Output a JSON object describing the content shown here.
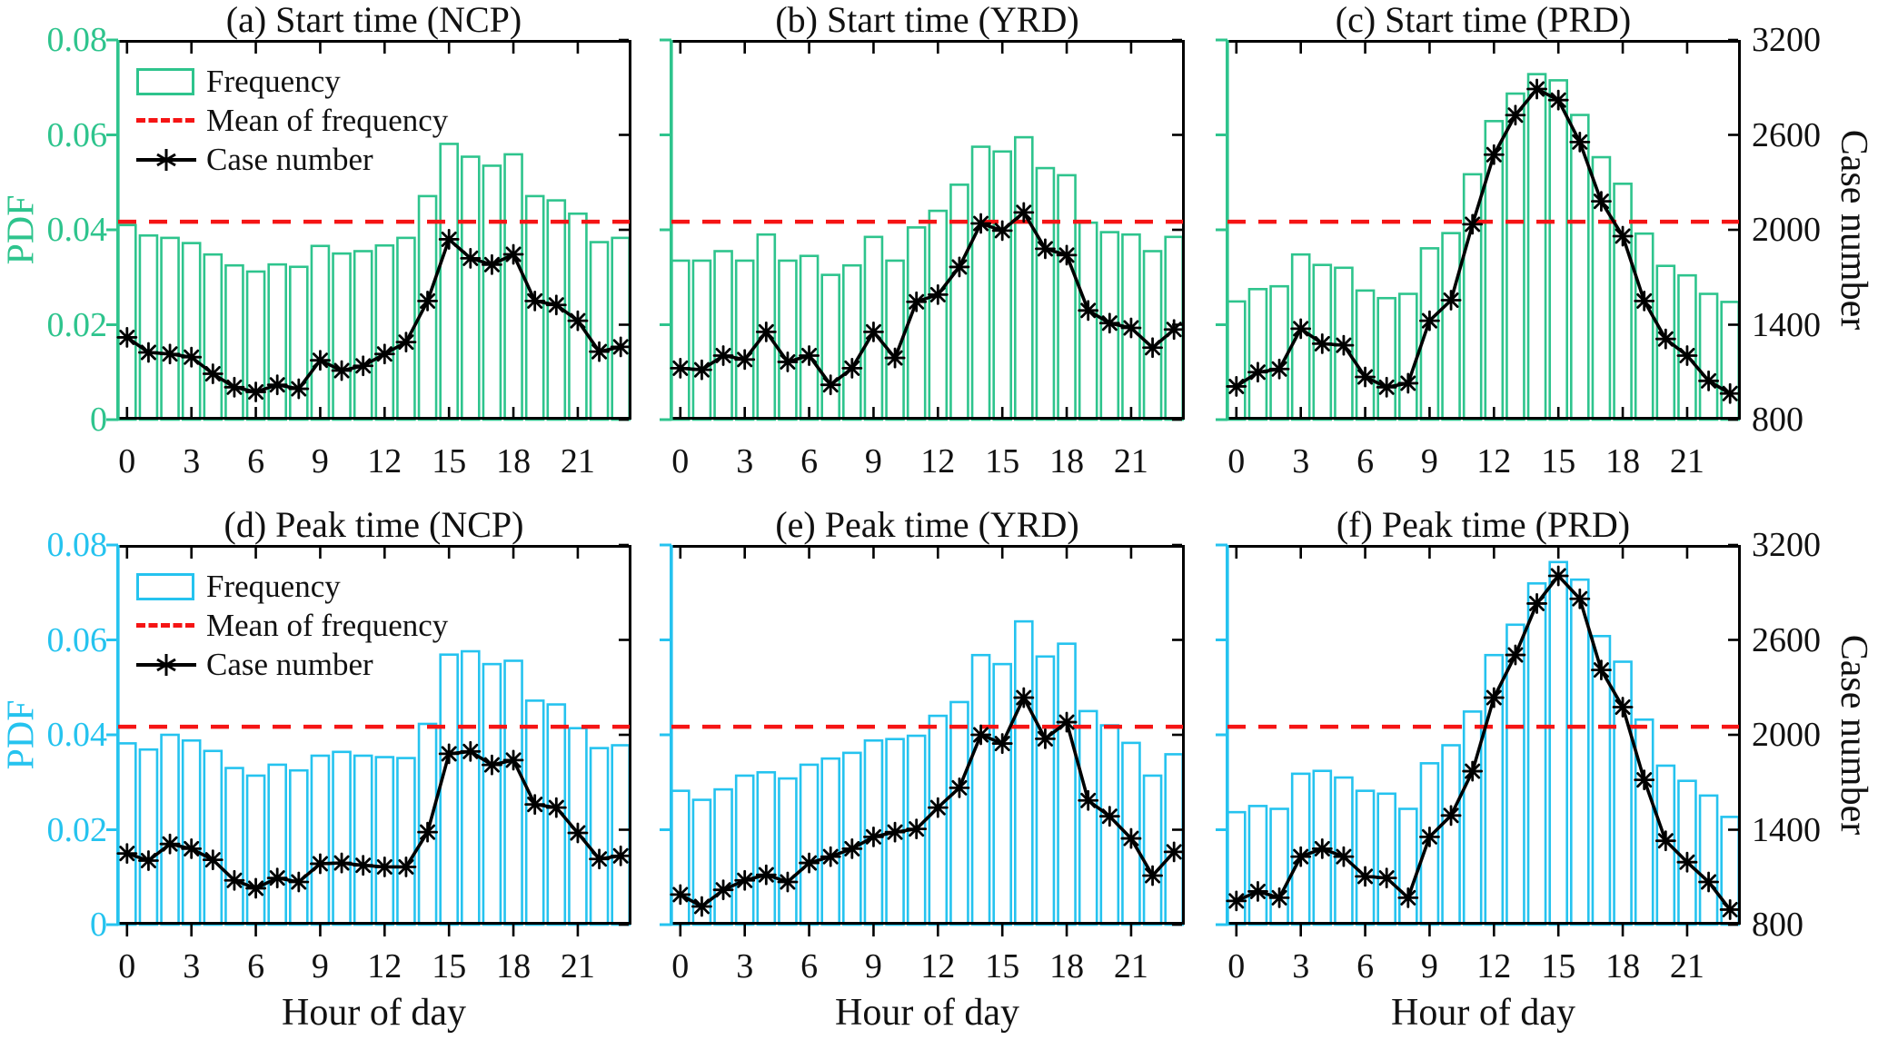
{
  "figure": {
    "kind": "2x3 subplot figure: diurnal frequency histograms with case-number curves",
    "row_titles": [
      "Start time",
      "Peak time"
    ],
    "regions": [
      "NCP",
      "YRD",
      "PRD"
    ]
  },
  "axes": {
    "x": {
      "label": "Hour of day",
      "tick_labels": [
        "0",
        "3",
        "6",
        "9",
        "12",
        "15",
        "18",
        "21"
      ],
      "tick_hours": [
        0,
        3,
        6,
        9,
        12,
        15,
        18,
        21
      ],
      "range": [
        0,
        23
      ]
    },
    "y_left": {
      "label": "PDF",
      "tick_labels": [
        "0",
        "0.02",
        "0.04",
        "0.06",
        "0.08"
      ],
      "min": 0,
      "max": 0.08
    },
    "y_right": {
      "label": "Case number",
      "tick_labels": [
        "800",
        "1400",
        "2000",
        "2600",
        "3200"
      ],
      "min": 800,
      "max": 3200
    }
  },
  "legend": {
    "frequency": "Frequency",
    "mean": "Mean of frequency",
    "case": "Case number"
  },
  "colors": {
    "start_accent": "#2ec48d",
    "peak_accent": "#25c3ef",
    "mean_line": "#f51414",
    "case_line": "#000000"
  },
  "mean_frequency": 0.0417,
  "chart_data": [
    {
      "id": "a",
      "title": "(a) Start time (NCP)",
      "type": "bar",
      "categories": [
        0,
        1,
        2,
        3,
        4,
        5,
        6,
        7,
        8,
        9,
        10,
        11,
        12,
        13,
        14,
        15,
        16,
        17,
        18,
        19,
        20,
        21,
        22,
        23
      ],
      "values": [
        0.041,
        0.0388,
        0.0383,
        0.0372,
        0.0348,
        0.0325,
        0.0312,
        0.0327,
        0.0322,
        0.0366,
        0.035,
        0.0355,
        0.0367,
        0.0383,
        0.0471,
        0.0581,
        0.0554,
        0.0535,
        0.0559,
        0.0471,
        0.0462,
        0.0434,
        0.0374,
        0.0383
      ],
      "case_number": [
        1320,
        1225,
        1215,
        1195,
        1090,
        1005,
        975,
        1020,
        995,
        1175,
        1110,
        1140,
        1215,
        1290,
        1550,
        1940,
        1820,
        1780,
        1845,
        1550,
        1525,
        1425,
        1230,
        1260
      ],
      "mean_frequency": 0.0417,
      "xlabel": "",
      "ylabel": "PDF",
      "ylim": [
        0,
        0.08
      ],
      "y2lim": [
        800,
        3200
      ]
    },
    {
      "id": "b",
      "title": "(b) Start time (YRD)",
      "type": "bar",
      "categories": [
        0,
        1,
        2,
        3,
        4,
        5,
        6,
        7,
        8,
        9,
        10,
        11,
        12,
        13,
        14,
        15,
        16,
        17,
        18,
        19,
        20,
        21,
        22,
        23
      ],
      "values": [
        0.0335,
        0.0335,
        0.0355,
        0.0335,
        0.039,
        0.0335,
        0.0345,
        0.0305,
        0.0325,
        0.0385,
        0.0335,
        0.0405,
        0.044,
        0.0495,
        0.0575,
        0.0565,
        0.0595,
        0.053,
        0.0515,
        0.0415,
        0.0395,
        0.039,
        0.0355,
        0.0385
      ],
      "case_number": [
        1125,
        1115,
        1205,
        1180,
        1355,
        1165,
        1205,
        1020,
        1125,
        1355,
        1190,
        1545,
        1590,
        1765,
        2040,
        1995,
        2110,
        1880,
        1840,
        1490,
        1410,
        1380,
        1255,
        1370
      ],
      "mean_frequency": 0.0417,
      "xlabel": "",
      "ylabel": "",
      "ylim": [
        0,
        0.08
      ],
      "y2lim": [
        800,
        3200
      ]
    },
    {
      "id": "c",
      "title": "(c) Start time (PRD)",
      "type": "bar",
      "categories": [
        0,
        1,
        2,
        3,
        4,
        5,
        6,
        7,
        8,
        9,
        10,
        11,
        12,
        13,
        14,
        15,
        16,
        17,
        18,
        19,
        20,
        21,
        22,
        23
      ],
      "values": [
        0.0249,
        0.0275,
        0.0281,
        0.0348,
        0.0326,
        0.032,
        0.0272,
        0.0256,
        0.0265,
        0.0361,
        0.0393,
        0.0517,
        0.0629,
        0.0687,
        0.0728,
        0.0715,
        0.0642,
        0.0553,
        0.0497,
        0.0392,
        0.0324,
        0.0304,
        0.0265,
        0.0248
      ],
      "case_number": [
        1010,
        1100,
        1120,
        1375,
        1280,
        1270,
        1070,
        1005,
        1030,
        1425,
        1555,
        2035,
        2475,
        2725,
        2890,
        2820,
        2555,
        2180,
        1960,
        1550,
        1310,
        1205,
        1045,
        965
      ],
      "mean_frequency": 0.0417,
      "xlabel": "",
      "ylabel": "Case number",
      "ylim": [
        0,
        0.08
      ],
      "y2lim": [
        800,
        3200
      ]
    },
    {
      "id": "d",
      "title": "(d) Peak time (NCP)",
      "type": "bar",
      "categories": [
        0,
        1,
        2,
        3,
        4,
        5,
        6,
        7,
        8,
        9,
        10,
        11,
        12,
        13,
        14,
        15,
        16,
        17,
        18,
        19,
        20,
        21,
        22,
        23
      ],
      "values": [
        0.0382,
        0.0369,
        0.04,
        0.0388,
        0.0366,
        0.033,
        0.0314,
        0.0337,
        0.0325,
        0.0356,
        0.0364,
        0.0356,
        0.0353,
        0.0351,
        0.0423,
        0.0569,
        0.0576,
        0.0549,
        0.0556,
        0.0472,
        0.0464,
        0.0414,
        0.0372,
        0.0378
      ],
      "case_number": [
        1250,
        1205,
        1310,
        1280,
        1210,
        1080,
        1030,
        1095,
        1070,
        1185,
        1190,
        1175,
        1165,
        1165,
        1385,
        1880,
        1895,
        1810,
        1840,
        1560,
        1540,
        1380,
        1215,
        1235
      ],
      "mean_frequency": 0.0417,
      "xlabel": "Hour of day",
      "ylabel": "PDF",
      "ylim": [
        0,
        0.08
      ],
      "y2lim": [
        800,
        3200
      ]
    },
    {
      "id": "e",
      "title": "(e) Peak time (YRD)",
      "type": "bar",
      "categories": [
        0,
        1,
        2,
        3,
        4,
        5,
        6,
        7,
        8,
        9,
        10,
        11,
        12,
        13,
        14,
        15,
        16,
        17,
        18,
        19,
        20,
        21,
        22,
        23
      ],
      "values": [
        0.0282,
        0.0263,
        0.0285,
        0.0314,
        0.0321,
        0.0308,
        0.0337,
        0.035,
        0.0362,
        0.0388,
        0.0391,
        0.0398,
        0.044,
        0.0469,
        0.0568,
        0.0549,
        0.0639,
        0.0565,
        0.0592,
        0.045,
        0.042,
        0.0383,
        0.0314,
        0.0359
      ],
      "case_number": [
        990,
        915,
        1020,
        1080,
        1115,
        1070,
        1190,
        1230,
        1280,
        1355,
        1385,
        1405,
        1540,
        1665,
        2000,
        1945,
        2235,
        1975,
        2080,
        1585,
        1485,
        1345,
        1110,
        1260
      ],
      "mean_frequency": 0.0417,
      "xlabel": "Hour of day",
      "ylabel": "",
      "ylim": [
        0,
        0.08
      ],
      "y2lim": [
        800,
        3200
      ]
    },
    {
      "id": "f",
      "title": "(f) Peak time (PRD)",
      "type": "bar",
      "categories": [
        0,
        1,
        2,
        3,
        4,
        5,
        6,
        7,
        8,
        9,
        10,
        11,
        12,
        13,
        14,
        15,
        16,
        17,
        18,
        19,
        20,
        21,
        22,
        23
      ],
      "values": [
        0.0237,
        0.025,
        0.0244,
        0.0318,
        0.0324,
        0.031,
        0.0282,
        0.0276,
        0.0244,
        0.034,
        0.0378,
        0.0449,
        0.0568,
        0.0632,
        0.0719,
        0.0764,
        0.0727,
        0.0608,
        0.0554,
        0.0432,
        0.0335,
        0.0303,
        0.0272,
        0.0227
      ],
      "case_number": [
        950,
        1010,
        970,
        1230,
        1280,
        1230,
        1105,
        1095,
        970,
        1355,
        1490,
        1770,
        2235,
        2505,
        2830,
        3005,
        2860,
        2410,
        2175,
        1715,
        1330,
        1195,
        1070,
        895
      ],
      "mean_frequency": 0.0417,
      "xlabel": "Hour of day",
      "ylabel": "Case number",
      "ylim": [
        0,
        0.08
      ],
      "y2lim": [
        800,
        3200
      ]
    }
  ]
}
